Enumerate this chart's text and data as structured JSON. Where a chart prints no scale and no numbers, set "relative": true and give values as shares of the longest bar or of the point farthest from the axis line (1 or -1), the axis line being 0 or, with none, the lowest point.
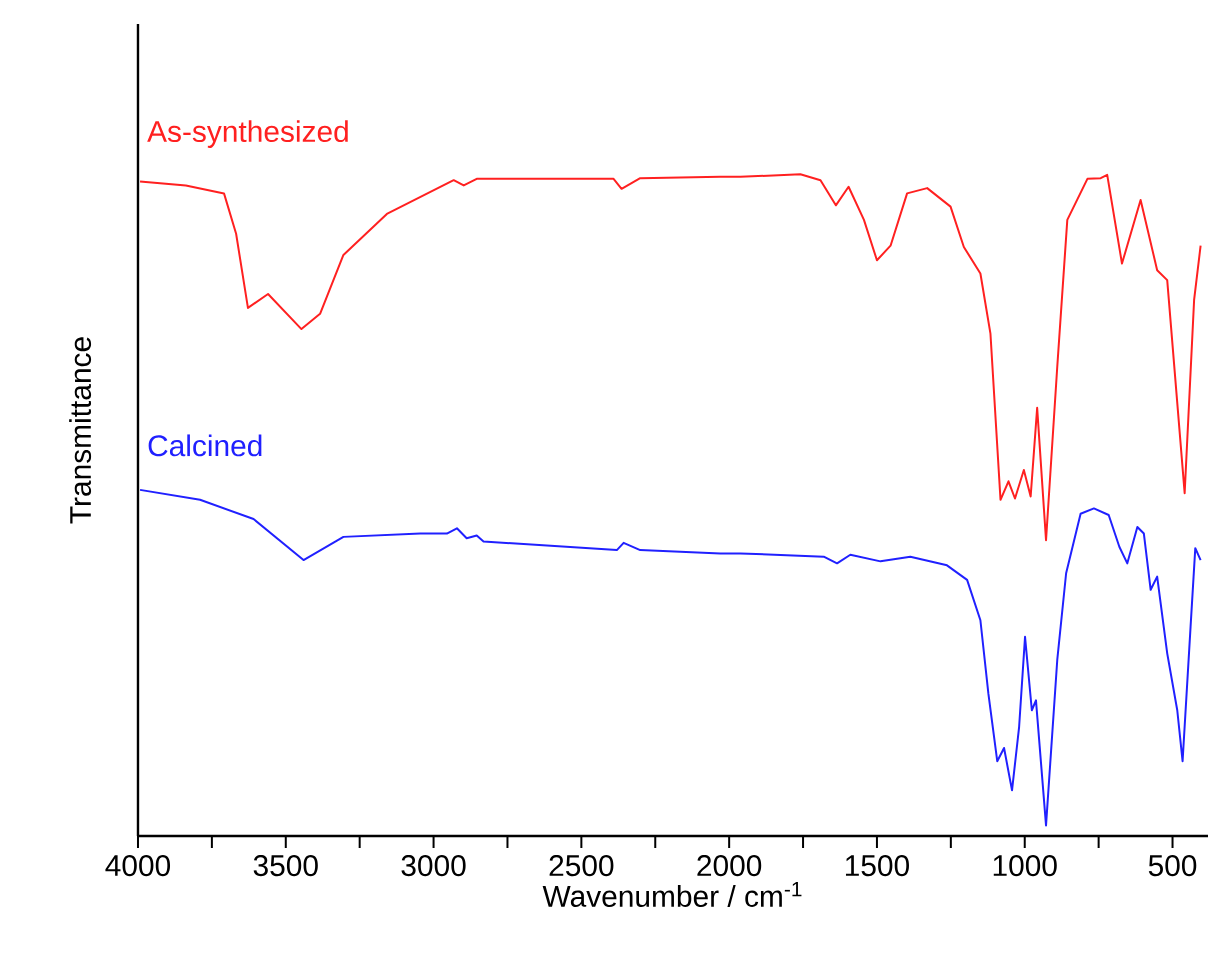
{
  "chart_data": {
    "type": "line",
    "relative": true,
    "xlabel": "Wavenumber / cm$^{-1}$",
    "ylabel": "Transmittance",
    "xlim": [
      4000,
      380
    ],
    "xticks": [
      4000,
      {
        "value": 3750,
        "label": null
      },
      3500,
      {
        "value": 3250,
        "label": null
      },
      3000,
      {
        "value": 2750,
        "label": null
      },
      2500,
      {
        "value": 2250,
        "label": null
      },
      2000,
      {
        "value": 1750,
        "label": null
      },
      1500,
      {
        "value": 1250,
        "label": null
      },
      1000,
      {
        "value": 750,
        "label": null
      },
      500
    ],
    "marker": "none",
    "line_style": "solid",
    "series": [
      {
        "name": "As-synthesized",
        "color": "#ff2020",
        "x": [
          3993,
          3838,
          3709,
          3668,
          3628,
          3560,
          3447,
          3384,
          3305,
          3158,
          2932,
          2898,
          2854,
          2707,
          2391,
          2364,
          2301,
          2030,
          1962,
          1759,
          1691,
          1639,
          1596,
          1544,
          1500,
          1454,
          1398,
          1330,
          1251,
          1206,
          1150,
          1116,
          1082,
          1055,
          1033,
          1003,
          980,
          958,
          928,
          890,
          856,
          788,
          743,
          721,
          671,
          608,
          552,
          518,
          459,
          427,
          405
        ],
        "values": [
          0.989,
          0.983,
          0.971,
          0.91,
          0.798,
          0.819,
          0.766,
          0.789,
          0.878,
          0.94,
          0.991,
          0.983,
          0.993,
          0.993,
          0.993,
          0.978,
          0.994,
          0.996,
          0.996,
          1.0,
          0.991,
          0.953,
          0.981,
          0.931,
          0.87,
          0.892,
          0.971,
          0.979,
          0.951,
          0.89,
          0.85,
          0.759,
          0.508,
          0.536,
          0.51,
          0.553,
          0.513,
          0.647,
          0.447,
          0.709,
          0.931,
          0.993,
          0.994,
          0.999,
          0.865,
          0.961,
          0.855,
          0.84,
          0.518,
          0.81,
          0.892
        ]
      },
      {
        "name": "Calcined",
        "color": "#2020ff",
        "x": [
          3993,
          3790,
          3609,
          3440,
          3305,
          3045,
          2955,
          2921,
          2888,
          2854,
          2831,
          2380,
          2357,
          2301,
          2030,
          1962,
          1680,
          1635,
          1590,
          1488,
          1387,
          1263,
          1195,
          1150,
          1123,
          1093,
          1070,
          1043,
          1019,
          999,
          976,
          962,
          928,
          890,
          860,
          811,
          766,
          716,
          680,
          653,
          619,
          597,
          574,
          552,
          518,
          484,
          466,
          439,
          423,
          405
        ],
        "values": [
          0.523,
          0.508,
          0.479,
          0.417,
          0.452,
          0.457,
          0.457,
          0.465,
          0.45,
          0.454,
          0.445,
          0.432,
          0.443,
          0.432,
          0.427,
          0.427,
          0.422,
          0.412,
          0.425,
          0.415,
          0.422,
          0.409,
          0.387,
          0.326,
          0.215,
          0.113,
          0.133,
          0.069,
          0.165,
          0.301,
          0.19,
          0.205,
          0.016,
          0.266,
          0.397,
          0.487,
          0.495,
          0.485,
          0.437,
          0.412,
          0.467,
          0.457,
          0.372,
          0.392,
          0.276,
          0.19,
          0.113,
          0.316,
          0.435,
          0.417
        ]
      }
    ]
  }
}
